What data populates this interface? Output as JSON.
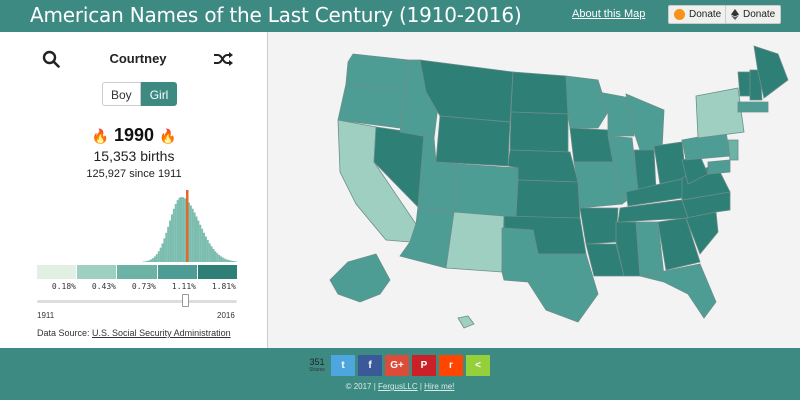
{
  "header": {
    "title": "American Names of the Last Century (1910-2016)",
    "about_link": "About this Map",
    "donate_btc": "Donate",
    "donate_eth": "Donate"
  },
  "sidebar": {
    "name": "Courtney",
    "gender_options": [
      "Boy",
      "Girl"
    ],
    "selected_gender": "Girl",
    "year": "1990",
    "births": "15,353 births",
    "since": "125,927 since 1911",
    "legend_labels": [
      "0.18%",
      "0.43%",
      "0.73%",
      "1.11%",
      "1.81%"
    ],
    "legend_colors": [
      "#e2efe3",
      "#9fcfc1",
      "#6cb3a6",
      "#4e9d94",
      "#2e7f76"
    ],
    "slider": {
      "min": "1911",
      "max": "2016",
      "value": 1990
    },
    "data_source_label": "Data Source:",
    "data_source_link": "U.S. Social Security Administration"
  },
  "chart_data": {
    "type": "bar",
    "title": "",
    "x": [
      1911,
      2016
    ],
    "highlight": 1990,
    "values_shape": "peaked distribution centered around ~1987",
    "ylim": [
      0,
      1
    ]
  },
  "footer": {
    "share_count": "351",
    "share_label": "Shares",
    "buttons": [
      {
        "name": "twitter",
        "color": "#4da7de",
        "glyph": "t"
      },
      {
        "name": "facebook",
        "color": "#3b5998",
        "glyph": "f"
      },
      {
        "name": "google-plus",
        "color": "#dd4b39",
        "glyph": "G+"
      },
      {
        "name": "pinterest",
        "color": "#cb2027",
        "glyph": "P"
      },
      {
        "name": "reddit",
        "color": "#ff4500",
        "glyph": "r"
      },
      {
        "name": "sharethis",
        "color": "#95d03a",
        "glyph": "<"
      }
    ],
    "copyright_prefix": "© 2017 |",
    "copyright_link1": "FergusLLC",
    "copyright_sep": "|",
    "copyright_link2": "Hire me!"
  },
  "map": {
    "colors": {
      "c1": "#e2efe3",
      "c2": "#9fcfc1",
      "c3": "#6cb3a6",
      "c4": "#4e9d94",
      "c5": "#2e7f76",
      "border": "#6b8e8a"
    }
  }
}
